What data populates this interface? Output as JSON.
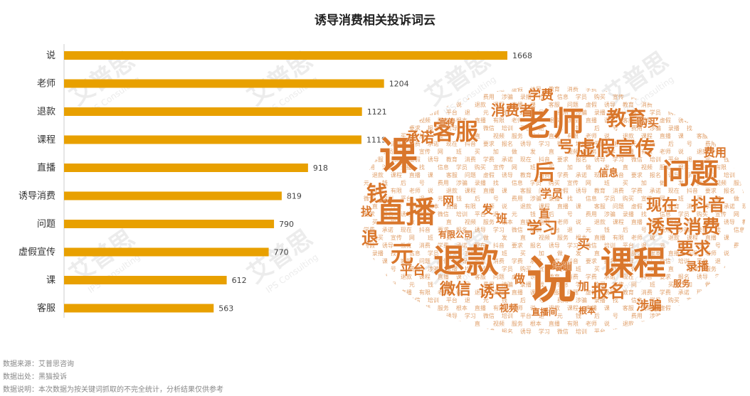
{
  "chart_data": {
    "type": "bar",
    "orientation": "horizontal",
    "title": "诱导消费相关投诉词云",
    "categories": [
      "说",
      "老师",
      "退款",
      "课程",
      "直播",
      "诱导消费",
      "问题",
      "虚假宣传",
      "课",
      "客服"
    ],
    "values": [
      1668,
      1204,
      1121,
      1119,
      918,
      819,
      790,
      770,
      612,
      563
    ],
    "data_labels": [
      "1668",
      "1204",
      "1121",
      "1119",
      "918",
      "819",
      "790",
      "770",
      "612",
      "563"
    ],
    "bar_color": "#E8A000",
    "xlim": [
      0,
      1800
    ],
    "grid": false
  },
  "wordcloud": {
    "main_color": "#D9762B",
    "big_words": [
      "老师",
      "说",
      "退款",
      "课程",
      "直播",
      "课",
      "客服",
      "问题",
      "虚假宣传",
      "诱导消费",
      "教育",
      "消费者",
      "学费",
      "承诺",
      "现在",
      "抖音",
      "要求",
      "报名",
      "诱导",
      "学习",
      "微信",
      "培训",
      "平台",
      "退",
      "元",
      "钱",
      "后",
      "号",
      "费用",
      "涉骗",
      "录播",
      "找",
      "信息",
      "学员",
      "购买",
      "宣传",
      "网",
      "班",
      "买",
      "加",
      "做",
      "发",
      "直",
      "视频",
      "服务",
      "根本",
      "直播间",
      "有限公司"
    ]
  },
  "footer": {
    "source": "数据来源：艾普思咨询",
    "origin": "数据出处：黑猫投诉",
    "note": "数据说明：本次数据为按关键词抓取的不完全统计，分析结果仅供参考"
  },
  "watermark": {
    "brand": "艾普思",
    "sub": "IPS Consulting"
  }
}
